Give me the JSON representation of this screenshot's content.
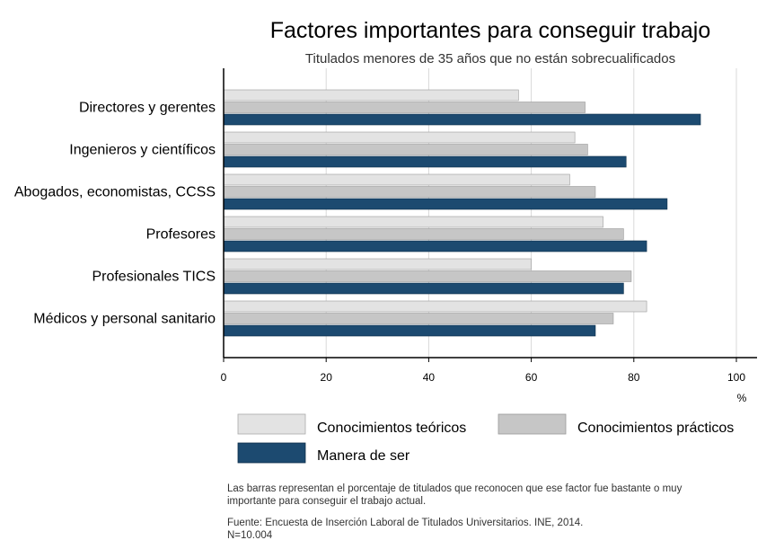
{
  "chart_data": {
    "type": "bar",
    "orientation": "horizontal",
    "title": "Factores importantes para conseguir trabajo",
    "subtitle": "Titulados menores de 35 años que no están sobrecualificados",
    "xlabel": "%",
    "xlim": [
      0,
      100
    ],
    "xticks": [
      "0",
      "20",
      "40",
      "60",
      "80",
      "100"
    ],
    "grid": true,
    "legend_position": "bottom",
    "categories": [
      "Directores y gerentes",
      "Ingenieros y científicos",
      "Abogados, economistas, CCSS",
      "Profesores",
      "Profesionales TICS",
      "Médicos y personal sanitario"
    ],
    "series": [
      {
        "name": "Conocimientos teóricos",
        "color": "#e3e3e3",
        "values": [
          57.5,
          68.5,
          67.5,
          74,
          60,
          82.5
        ]
      },
      {
        "name": "Conocimientos prácticos",
        "color": "#c6c6c6",
        "values": [
          70.5,
          71,
          72.5,
          78,
          79.5,
          76
        ]
      },
      {
        "name": "Manera de ser",
        "color": "#1c4a70",
        "values": [
          93,
          78.5,
          86.5,
          82.5,
          78,
          72.5
        ]
      }
    ],
    "notes": [
      "Las barras representan el porcentaje de titulados que reconocen que ese factor fue bastante o muy",
      "importante para conseguir el trabajo actual."
    ],
    "source": [
      "Fuente: Encuesta de Inserción Laboral de Titulados Universitarios. INE, 2014.",
      "N=10.004"
    ]
  }
}
